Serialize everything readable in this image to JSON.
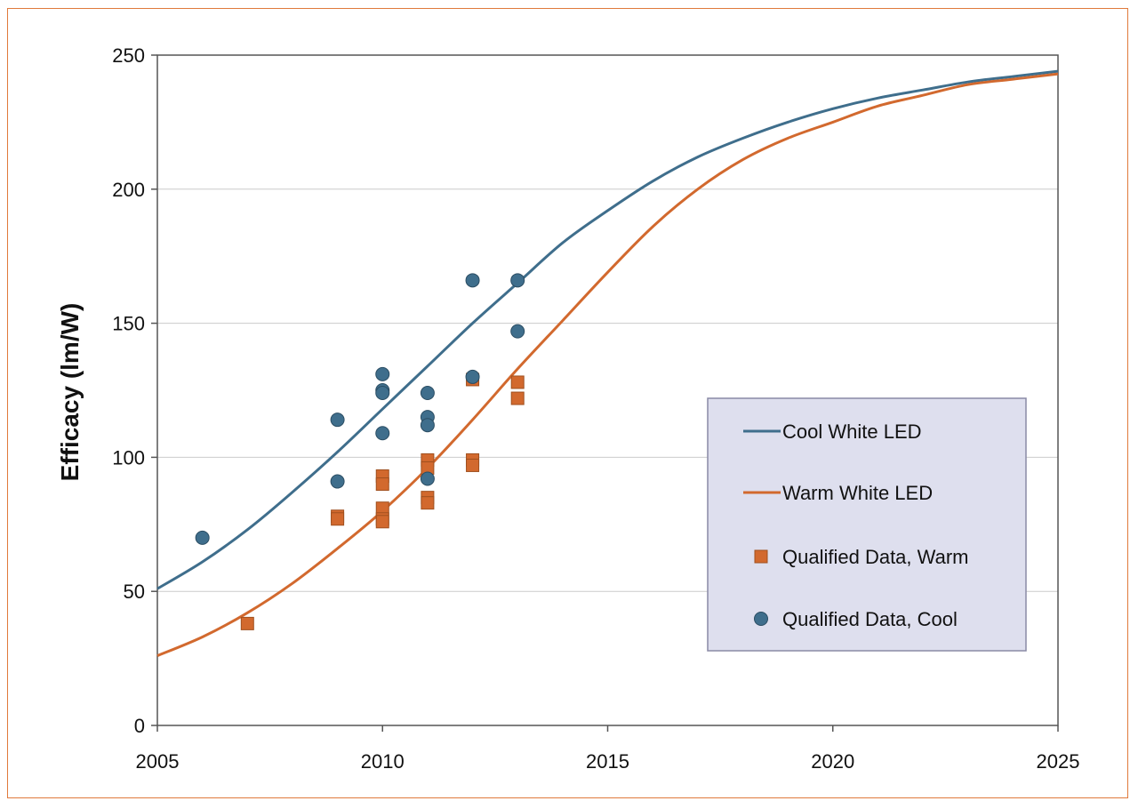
{
  "colors": {
    "cool": "#3f6e8c",
    "warm": "#d2692e",
    "frame": "#e07a3c",
    "legend_bg": "#dedfee",
    "legend_border": "#8a8aa6",
    "grid": "#cccccc"
  },
  "chart_data": {
    "type": "scatter",
    "ylabel": "Efficacy (lm/W)",
    "xlabel": "",
    "xlim": [
      2005,
      2025
    ],
    "ylim": [
      0,
      250
    ],
    "x_ticks": [
      "2005",
      "2010",
      "2015",
      "2020",
      "2025"
    ],
    "y_ticks": [
      "0",
      "50",
      "100",
      "150",
      "200",
      "250"
    ],
    "grid": "horizontal",
    "legend_position": "center-right",
    "series": [
      {
        "name": "Cool White LED",
        "kind": "line",
        "color": "#3f6e8c",
        "x": [
          2005,
          2006,
          2007,
          2008,
          2009,
          2010,
          2011,
          2012,
          2013,
          2014,
          2015,
          2016,
          2017,
          2018,
          2019,
          2020,
          2021,
          2022,
          2023,
          2024,
          2025
        ],
        "y": [
          51,
          61,
          73,
          87,
          102,
          118,
          134,
          150,
          165,
          180,
          192,
          203,
          212,
          219,
          225,
          230,
          234,
          237,
          240,
          242,
          244
        ]
      },
      {
        "name": "Warm White LED",
        "kind": "line",
        "color": "#d2692e",
        "x": [
          2005,
          2006,
          2007,
          2008,
          2009,
          2010,
          2011,
          2012,
          2013,
          2014,
          2015,
          2016,
          2017,
          2018,
          2019,
          2020,
          2021,
          2022,
          2023,
          2024,
          2025
        ],
        "y": [
          26,
          33,
          42,
          53,
          66,
          80,
          96,
          114,
          133,
          151,
          169,
          186,
          200,
          211,
          219,
          225,
          231,
          235,
          239,
          241,
          243
        ]
      },
      {
        "name": "Qualified Data, Warm",
        "kind": "square",
        "color": "#d2692e",
        "points": [
          [
            2007,
            38
          ],
          [
            2009,
            78
          ],
          [
            2009,
            77
          ],
          [
            2010,
            93
          ],
          [
            2010,
            90
          ],
          [
            2010,
            81
          ],
          [
            2010,
            77
          ],
          [
            2010,
            76
          ],
          [
            2011,
            99
          ],
          [
            2011,
            96
          ],
          [
            2011,
            85
          ],
          [
            2011,
            83
          ],
          [
            2012,
            129
          ],
          [
            2012,
            99
          ],
          [
            2012,
            97
          ],
          [
            2013,
            128
          ],
          [
            2013,
            122
          ]
        ]
      },
      {
        "name": "Qualified Data, Cool",
        "kind": "circle",
        "color": "#3f6e8c",
        "points": [
          [
            2006,
            70
          ],
          [
            2009,
            114
          ],
          [
            2009,
            91
          ],
          [
            2010,
            131
          ],
          [
            2010,
            125
          ],
          [
            2010,
            124
          ],
          [
            2010,
            109
          ],
          [
            2011,
            124
          ],
          [
            2011,
            115
          ],
          [
            2011,
            112
          ],
          [
            2011,
            92
          ],
          [
            2012,
            166
          ],
          [
            2012,
            130
          ],
          [
            2013,
            166
          ],
          [
            2013,
            147
          ]
        ]
      }
    ]
  }
}
